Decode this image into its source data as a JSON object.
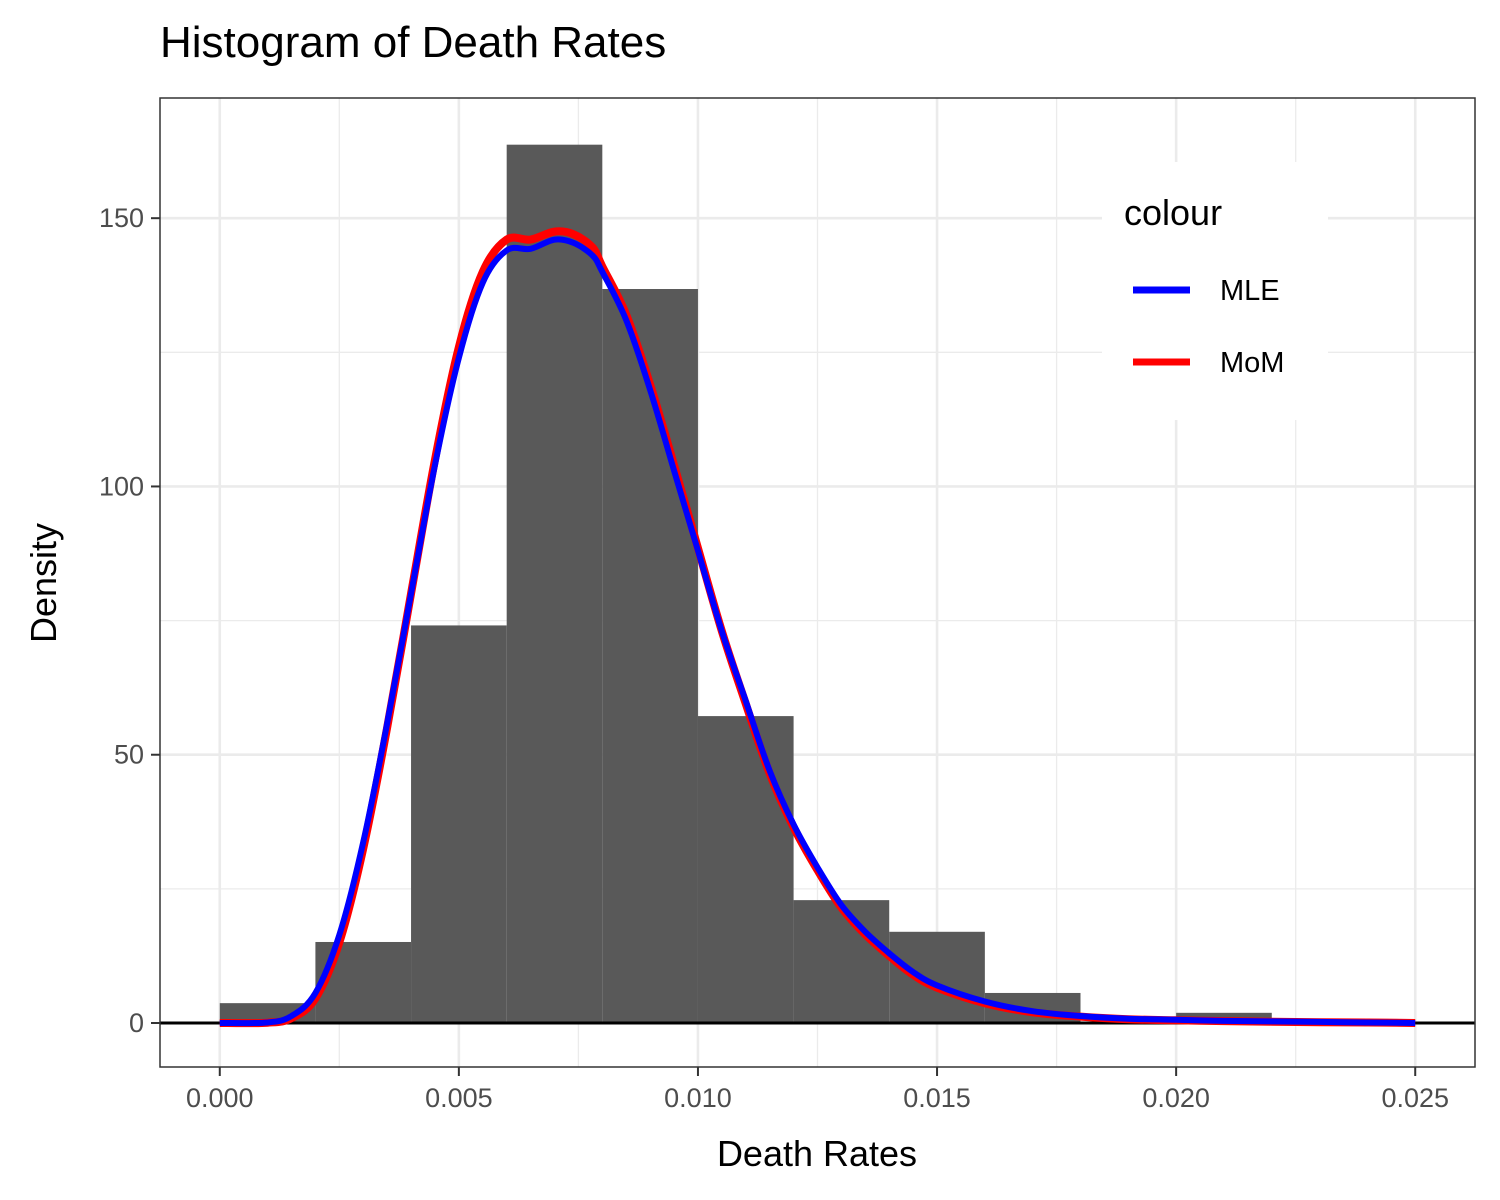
{
  "chart_data": {
    "type": "histogram",
    "title": "Histogram of Death Rates",
    "xlabel": "Death Rates",
    "ylabel": "Density",
    "xlim": [
      -0.00125,
      0.02625
    ],
    "ylim": [
      -8.2,
      172.4
    ],
    "x_ticks": [
      0.0,
      0.005,
      0.01,
      0.015,
      0.02,
      0.025
    ],
    "x_tick_labels": [
      "0.000",
      "0.005",
      "0.010",
      "0.015",
      "0.020",
      "0.025"
    ],
    "y_ticks": [
      0,
      50,
      100,
      150
    ],
    "y_tick_labels": [
      "0",
      "50",
      "100",
      "150"
    ],
    "grid": true,
    "hline_y": 0,
    "bar_color": "#595959",
    "bins": [
      {
        "x0": 0.0,
        "x1": 0.002,
        "density": 3.7
      },
      {
        "x0": 0.002,
        "x1": 0.004,
        "density": 15.1
      },
      {
        "x0": 0.004,
        "x1": 0.006,
        "density": 74.1
      },
      {
        "x0": 0.006,
        "x1": 0.008,
        "density": 163.7
      },
      {
        "x0": 0.008,
        "x1": 0.01,
        "density": 136.8
      },
      {
        "x0": 0.01,
        "x1": 0.012,
        "density": 57.2
      },
      {
        "x0": 0.012,
        "x1": 0.014,
        "density": 22.9
      },
      {
        "x0": 0.014,
        "x1": 0.016,
        "density": 17.0
      },
      {
        "x0": 0.016,
        "x1": 0.018,
        "density": 5.6
      },
      {
        "x0": 0.018,
        "x1": 0.02,
        "density": 0.0
      },
      {
        "x0": 0.02,
        "x1": 0.022,
        "density": 1.9
      }
    ],
    "series": [
      {
        "name": "MLE",
        "color": "#0000ff",
        "x": [
          0.0,
          0.001,
          0.0015,
          0.002,
          0.0025,
          0.003,
          0.0035,
          0.004,
          0.0045,
          0.005,
          0.0055,
          0.006,
          0.0065,
          0.007,
          0.0074,
          0.0078,
          0.008,
          0.0085,
          0.009,
          0.0095,
          0.01,
          0.0105,
          0.011,
          0.0115,
          0.012,
          0.0125,
          0.013,
          0.0135,
          0.014,
          0.0145,
          0.015,
          0.016,
          0.017,
          0.018,
          0.019,
          0.02,
          0.021,
          0.022,
          0.023,
          0.024,
          0.025
        ],
        "y": [
          0,
          0.1,
          1.3,
          5.6,
          16.4,
          33.7,
          55.8,
          80,
          104,
          124,
          138,
          144,
          144.3,
          146,
          145.4,
          143,
          140,
          131,
          118,
          103,
          88,
          73,
          60,
          47,
          37,
          29,
          22,
          17,
          13,
          9.5,
          7,
          4,
          2.2,
          1.3,
          0.8,
          0.6,
          0.4,
          0.3,
          0.2,
          0.1,
          0
        ]
      },
      {
        "name": "MoM",
        "color": "#ff0000",
        "x": [
          0.0,
          0.001,
          0.0015,
          0.002,
          0.0025,
          0.003,
          0.0035,
          0.004,
          0.0045,
          0.005,
          0.0055,
          0.006,
          0.0065,
          0.007,
          0.0074,
          0.0078,
          0.008,
          0.0085,
          0.009,
          0.0095,
          0.01,
          0.0105,
          0.011,
          0.0115,
          0.012,
          0.0125,
          0.013,
          0.0135,
          0.014,
          0.0145,
          0.015,
          0.016,
          0.017,
          0.018,
          0.019,
          0.02,
          0.021,
          0.022,
          0.023,
          0.024,
          0.025
        ],
        "y": [
          0,
          0.05,
          0.9,
          4.6,
          15,
          32.5,
          55,
          80,
          105,
          126,
          140,
          146,
          146,
          147.5,
          147,
          144.5,
          141,
          132,
          119,
          104,
          88.5,
          73,
          59.5,
          46.5,
          36.5,
          28.5,
          21.5,
          16.5,
          12.5,
          9,
          6.6,
          3.7,
          2,
          1.2,
          0.7,
          0.5,
          0.35,
          0.25,
          0.15,
          0.1,
          0
        ]
      }
    ],
    "legend": {
      "title": "colour",
      "position": "top-right",
      "items": [
        {
          "label": "MLE",
          "color": "#0000ff"
        },
        {
          "label": "MoM",
          "color": "#ff0000"
        }
      ]
    }
  }
}
